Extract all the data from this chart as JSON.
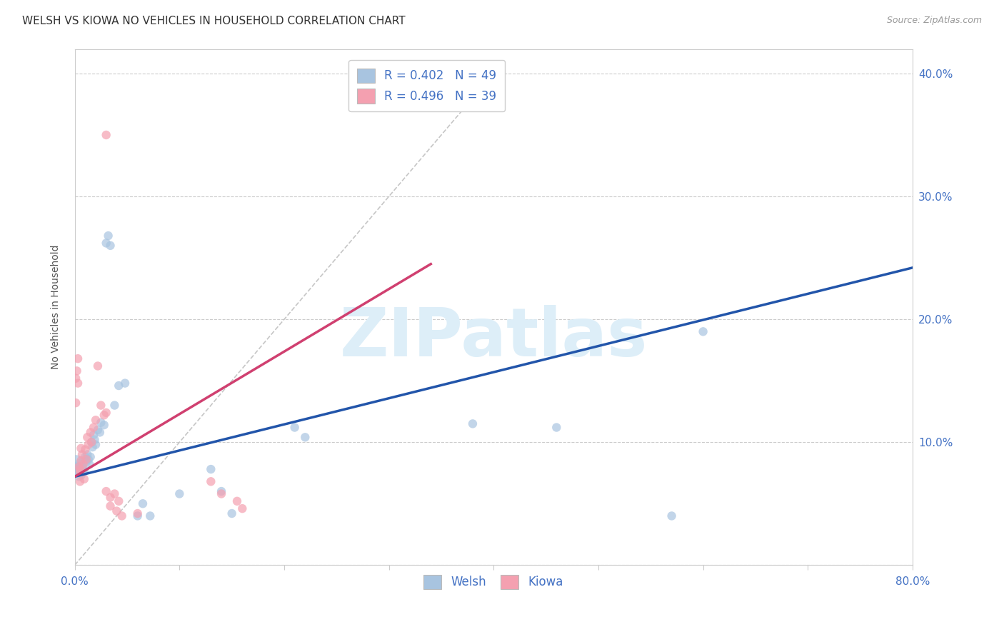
{
  "title": "WELSH VS KIOWA NO VEHICLES IN HOUSEHOLD CORRELATION CHART",
  "source": "Source: ZipAtlas.com",
  "ylabel": "No Vehicles in Household",
  "xlim": [
    0.0,
    0.8
  ],
  "ylim": [
    0.0,
    0.42
  ],
  "xticks": [
    0.0,
    0.1,
    0.2,
    0.3,
    0.4,
    0.5,
    0.6,
    0.7,
    0.8
  ],
  "yticks": [
    0.0,
    0.1,
    0.2,
    0.3,
    0.4
  ],
  "grid_color": "#cccccc",
  "diagonal_color": "#c0c0c0",
  "welsh_color": "#a8c4e0",
  "kiowa_color": "#f4a0b0",
  "welsh_line_color": "#2255aa",
  "kiowa_line_color": "#d04070",
  "welsh_R": 0.402,
  "welsh_N": 49,
  "kiowa_R": 0.496,
  "kiowa_N": 39,
  "tick_label_color": "#4472c4",
  "watermark_text": "ZIPatlas",
  "watermark_color": "#ddeef8",
  "welsh_line_x": [
    0.0,
    0.8
  ],
  "welsh_line_y": [
    0.072,
    0.242
  ],
  "kiowa_line_x": [
    0.0,
    0.34
  ],
  "kiowa_line_y": [
    0.072,
    0.245
  ],
  "welsh_scatter": [
    [
      0.001,
      0.082
    ],
    [
      0.001,
      0.078
    ],
    [
      0.002,
      0.08
    ],
    [
      0.002,
      0.076
    ],
    [
      0.003,
      0.079
    ],
    [
      0.003,
      0.075
    ],
    [
      0.004,
      0.08
    ],
    [
      0.004,
      0.072
    ],
    [
      0.005,
      0.083
    ],
    [
      0.005,
      0.076
    ],
    [
      0.006,
      0.077
    ],
    [
      0.006,
      0.073
    ],
    [
      0.007,
      0.08
    ],
    [
      0.008,
      0.078
    ],
    [
      0.009,
      0.076
    ],
    [
      0.01,
      0.088
    ],
    [
      0.011,
      0.084
    ],
    [
      0.012,
      0.09
    ],
    [
      0.013,
      0.086
    ],
    [
      0.014,
      0.082
    ],
    [
      0.015,
      0.088
    ],
    [
      0.016,
      0.1
    ],
    [
      0.017,
      0.096
    ],
    [
      0.018,
      0.106
    ],
    [
      0.019,
      0.102
    ],
    [
      0.02,
      0.098
    ],
    [
      0.022,
      0.11
    ],
    [
      0.024,
      0.108
    ],
    [
      0.025,
      0.116
    ],
    [
      0.028,
      0.114
    ],
    [
      0.03,
      0.262
    ],
    [
      0.032,
      0.268
    ],
    [
      0.034,
      0.26
    ],
    [
      0.038,
      0.13
    ],
    [
      0.042,
      0.146
    ],
    [
      0.048,
      0.148
    ],
    [
      0.06,
      0.04
    ],
    [
      0.065,
      0.05
    ],
    [
      0.072,
      0.04
    ],
    [
      0.1,
      0.058
    ],
    [
      0.13,
      0.078
    ],
    [
      0.14,
      0.06
    ],
    [
      0.15,
      0.042
    ],
    [
      0.21,
      0.112
    ],
    [
      0.22,
      0.104
    ],
    [
      0.38,
      0.115
    ],
    [
      0.46,
      0.112
    ],
    [
      0.57,
      0.04
    ],
    [
      0.6,
      0.19
    ]
  ],
  "welsh_sizes": [
    350,
    80,
    80,
    80,
    80,
    80,
    80,
    80,
    80,
    80,
    80,
    80,
    80,
    80,
    80,
    80,
    80,
    80,
    80,
    80,
    80,
    80,
    80,
    80,
    80,
    80,
    80,
    80,
    80,
    80,
    80,
    80,
    80,
    80,
    80,
    80,
    80,
    80,
    80,
    80,
    80,
    80,
    80,
    80,
    80,
    80,
    80,
    80,
    80
  ],
  "kiowa_scatter": [
    [
      0.001,
      0.152
    ],
    [
      0.001,
      0.132
    ],
    [
      0.002,
      0.158
    ],
    [
      0.003,
      0.168
    ],
    [
      0.003,
      0.148
    ],
    [
      0.004,
      0.08
    ],
    [
      0.005,
      0.078
    ],
    [
      0.005,
      0.068
    ],
    [
      0.006,
      0.095
    ],
    [
      0.006,
      0.085
    ],
    [
      0.007,
      0.09
    ],
    [
      0.008,
      0.082
    ],
    [
      0.009,
      0.07
    ],
    [
      0.01,
      0.094
    ],
    [
      0.011,
      0.086
    ],
    [
      0.012,
      0.104
    ],
    [
      0.013,
      0.098
    ],
    [
      0.015,
      0.108
    ],
    [
      0.016,
      0.1
    ],
    [
      0.018,
      0.112
    ],
    [
      0.02,
      0.118
    ],
    [
      0.022,
      0.162
    ],
    [
      0.025,
      0.13
    ],
    [
      0.028,
      0.122
    ],
    [
      0.03,
      0.124
    ],
    [
      0.03,
      0.06
    ],
    [
      0.034,
      0.055
    ],
    [
      0.034,
      0.048
    ],
    [
      0.038,
      0.058
    ],
    [
      0.04,
      0.044
    ],
    [
      0.042,
      0.052
    ],
    [
      0.045,
      0.04
    ],
    [
      0.06,
      0.042
    ],
    [
      0.13,
      0.068
    ],
    [
      0.14,
      0.058
    ],
    [
      0.155,
      0.052
    ],
    [
      0.16,
      0.046
    ],
    [
      0.03,
      0.35
    ],
    [
      0.005,
      0.076
    ]
  ],
  "kiowa_sizes": [
    80,
    80,
    80,
    80,
    80,
    80,
    80,
    80,
    80,
    80,
    80,
    80,
    80,
    80,
    80,
    80,
    80,
    80,
    80,
    80,
    80,
    80,
    80,
    80,
    80,
    80,
    80,
    80,
    80,
    80,
    80,
    80,
    80,
    80,
    80,
    80,
    80,
    80,
    80
  ]
}
